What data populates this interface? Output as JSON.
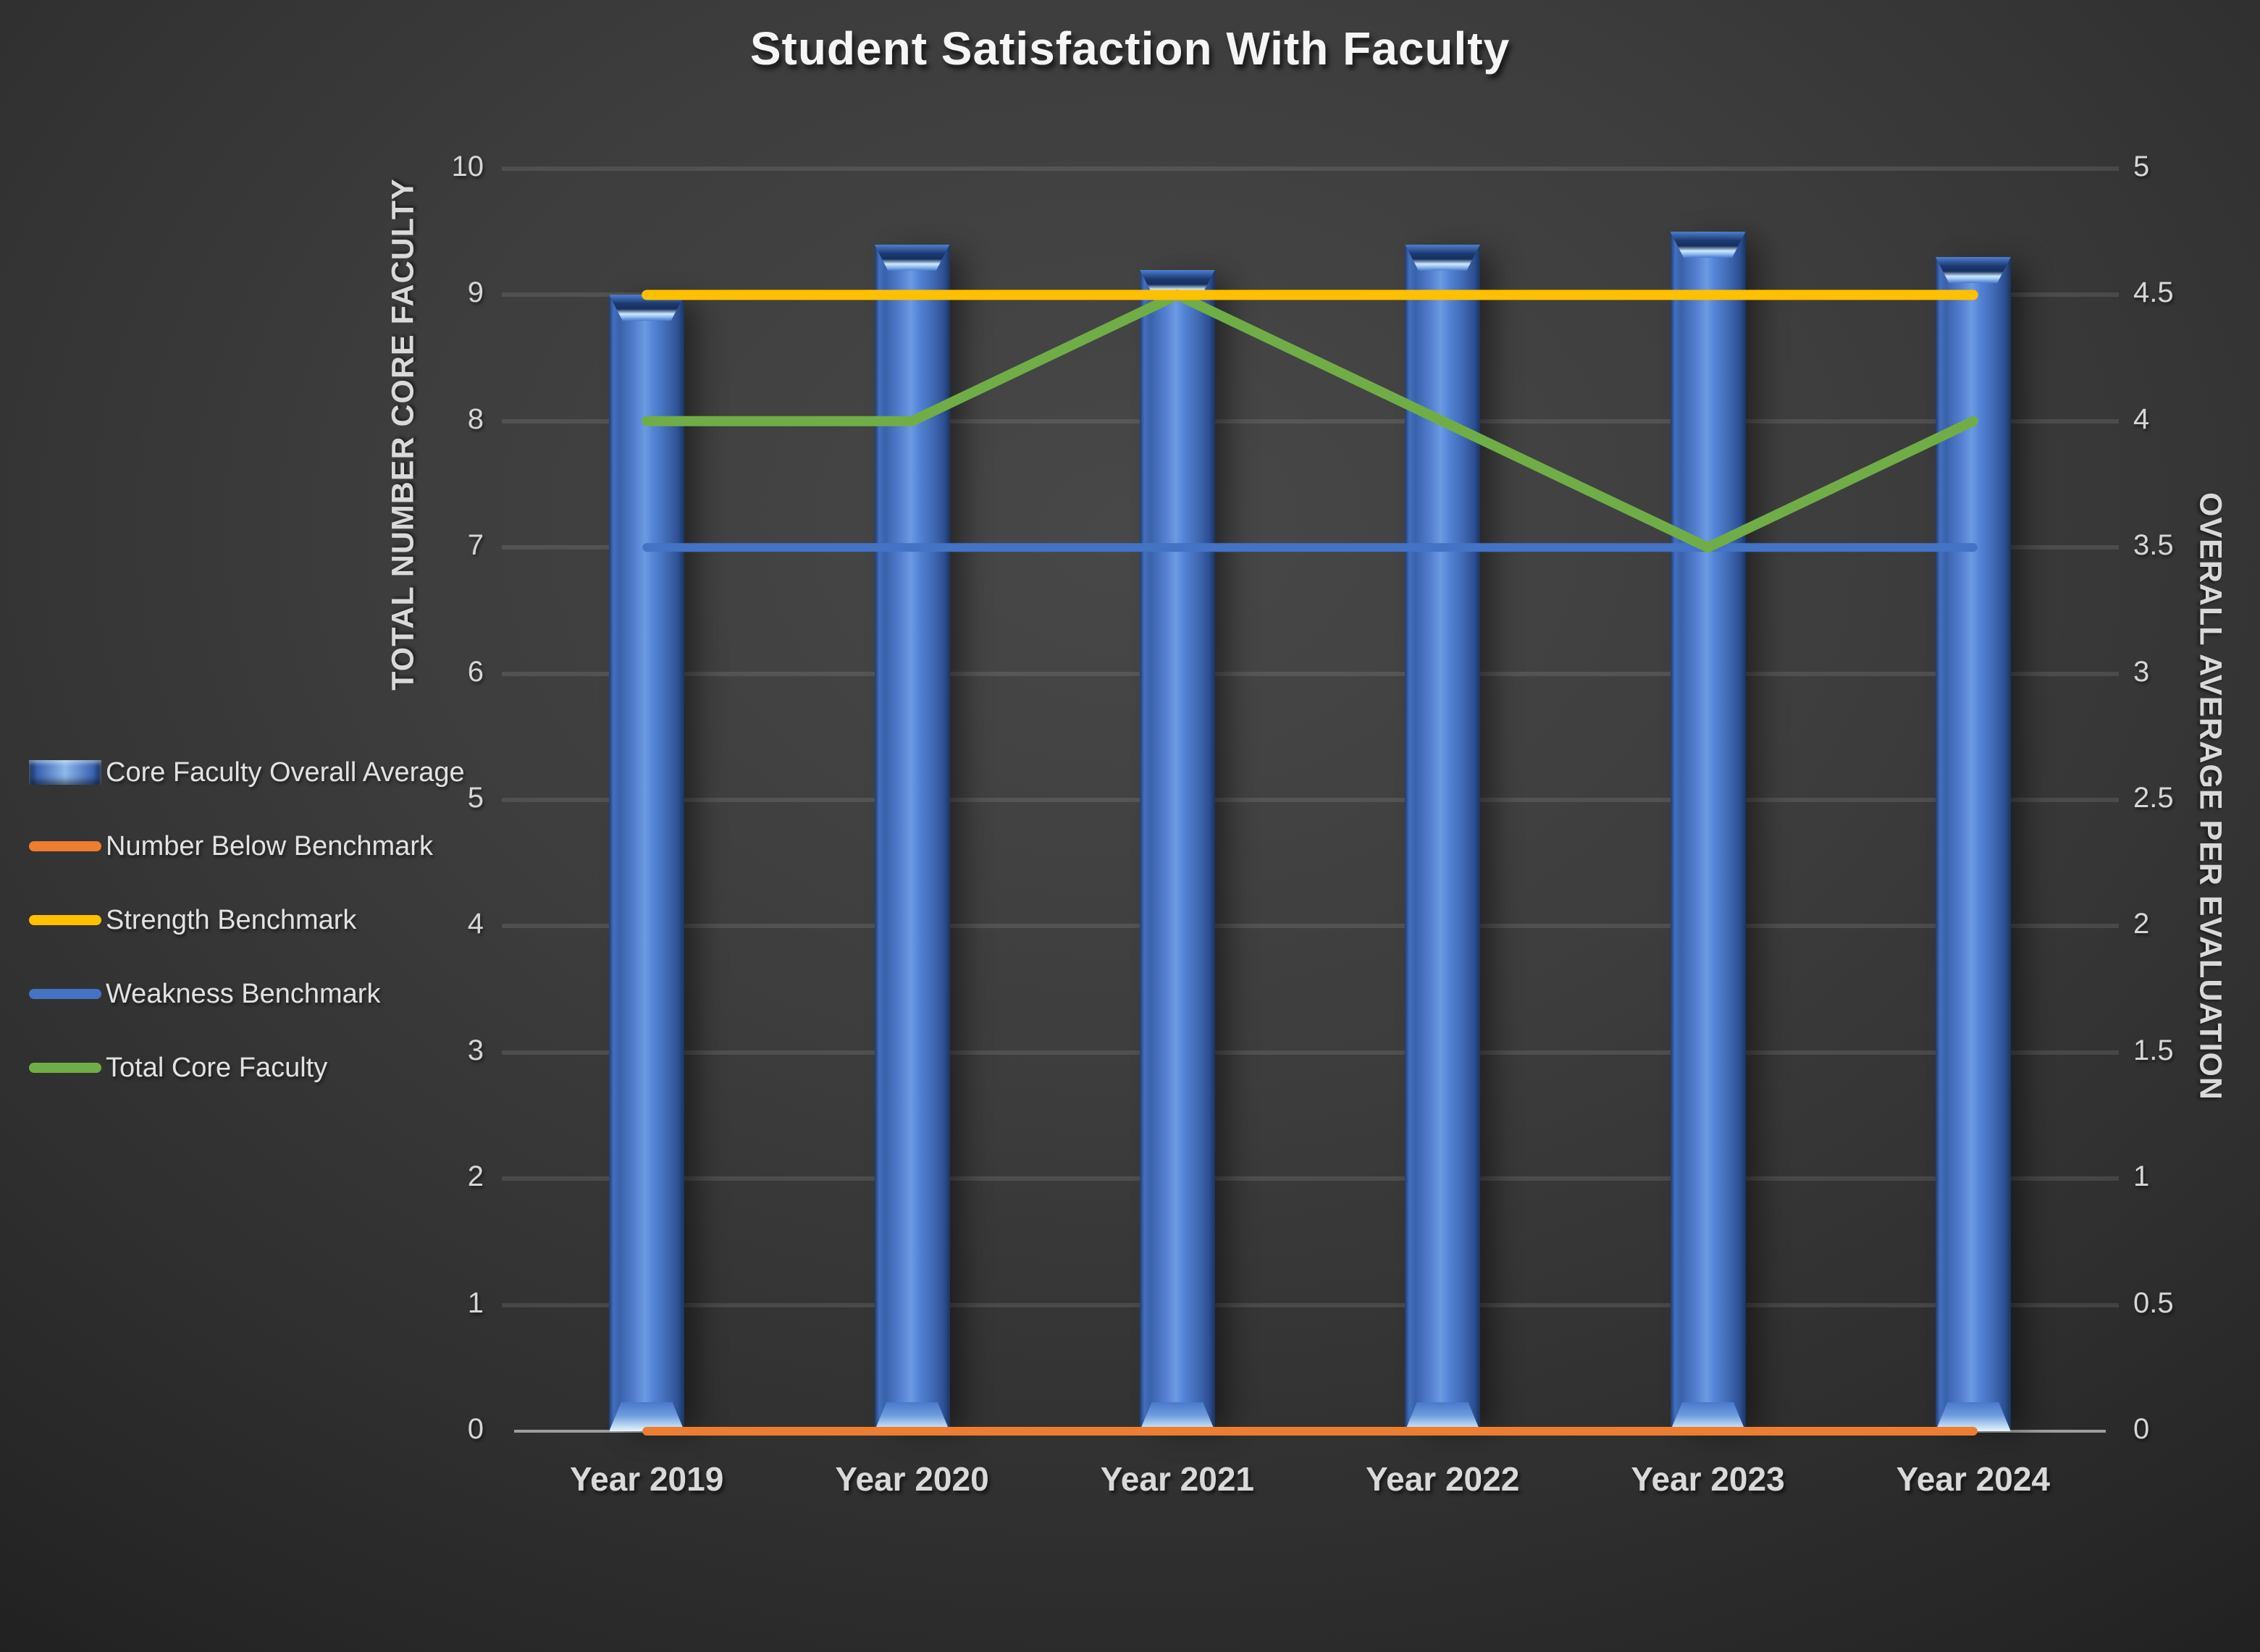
{
  "title": "Student Satisfaction With Faculty",
  "chart_data": {
    "type": "bar",
    "subtype": "combo-3d-bar-with-lines",
    "title": "Student Satisfaction With Faculty",
    "categories": [
      "Year 2019",
      "Year 2020",
      "Year 2021",
      "Year 2022",
      "Year 2023",
      "Year 2024"
    ],
    "series": [
      {
        "name": "Core Faculty Overall Average",
        "kind": "bar",
        "axis": "right",
        "color": "#4472C4",
        "values": [
          4.5,
          4.7,
          4.6,
          4.7,
          4.75,
          4.65
        ]
      },
      {
        "name": "Number Below Benchmark",
        "kind": "line",
        "axis": "left",
        "color": "#ED7D31",
        "values": [
          0,
          0,
          0,
          0,
          0,
          0
        ]
      },
      {
        "name": "Strength Benchmark",
        "kind": "line",
        "axis": "right",
        "color": "#FFC000",
        "values": [
          4.5,
          4.5,
          4.5,
          4.5,
          4.5,
          4.5
        ]
      },
      {
        "name": "Weakness Benchmark",
        "kind": "line",
        "axis": "right",
        "color": "#4472C4",
        "values": [
          3.5,
          3.5,
          3.5,
          3.5,
          3.5,
          3.5
        ]
      },
      {
        "name": "Total Core Faculty",
        "kind": "line",
        "axis": "left",
        "color": "#70AD47",
        "values": [
          8,
          8,
          9,
          8,
          7,
          8
        ]
      }
    ],
    "left_axis": {
      "title": "TOTAL NUMBER CORE FACULTY",
      "min": 0,
      "max": 10,
      "step": 1,
      "tick_labels": [
        "0",
        "1",
        "2",
        "3",
        "4",
        "5",
        "6",
        "7",
        "8",
        "9",
        "10"
      ]
    },
    "right_axis": {
      "title": "OVERALL AVERAGE PER EVALUATION",
      "min": 0,
      "max": 5,
      "step": 0.5,
      "tick_labels": [
        "0",
        "0.5",
        "1",
        "1.5",
        "2",
        "2.5",
        "3",
        "3.5",
        "4",
        "4.5",
        "5"
      ]
    },
    "grid": true,
    "legend_position": "left-middle",
    "colors": {
      "background_center": "#484848",
      "background_edge": "#1f1f1f",
      "grid_line": "#4d4d4d",
      "axis_line": "#9e9e9e",
      "label_text": "#d9d9d9",
      "title_text": "#f5f5f5"
    }
  }
}
